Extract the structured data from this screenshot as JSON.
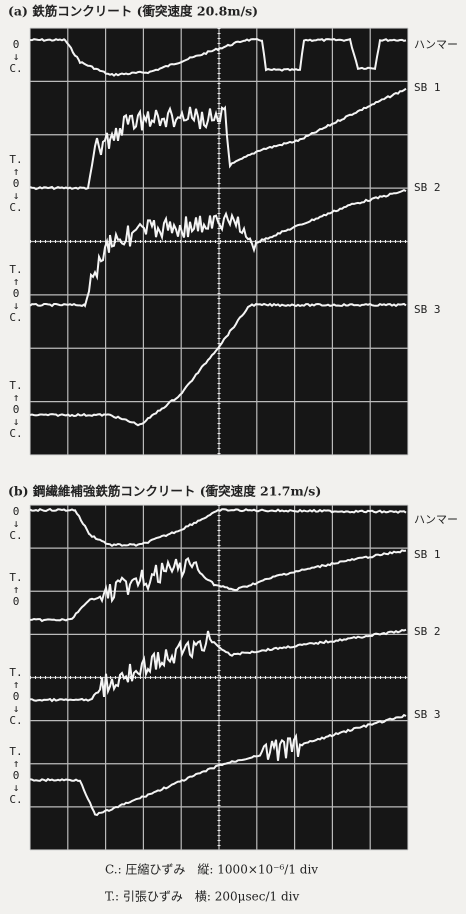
{
  "panels": [
    {
      "title": "(a) 鉄筋コンクリート (衝突速度 20.8m/s)",
      "traces": [
        {
          "name": "ハンマー",
          "axis_labels": [
            "0",
            "↓",
            "C."
          ]
        },
        {
          "name": "SB 1",
          "axis_labels": [
            "T.",
            "↑",
            "0",
            "↓",
            "C."
          ]
        },
        {
          "name": "SB 2",
          "axis_labels": [
            "T.",
            "↑",
            "0",
            "↓",
            "C."
          ]
        },
        {
          "name": "SB 3",
          "axis_labels": [
            "T.",
            "↑",
            "0",
            "↓",
            "C."
          ]
        }
      ]
    },
    {
      "title": "(b) 鋼繊維補強鉄筋コンクリート (衝突速度 21.7m/s)",
      "traces": [
        {
          "name": "ハンマー",
          "axis_labels": [
            "0",
            "↓",
            "C."
          ]
        },
        {
          "name": "SB 1",
          "axis_labels": [
            "T.",
            "↑",
            "0"
          ]
        },
        {
          "name": "SB 2",
          "axis_labels": [
            "T.",
            "↑",
            "0",
            "↓",
            "C."
          ]
        },
        {
          "name": "SB 3",
          "axis_labels": [
            "T.",
            "↑",
            "0",
            "↓",
            "C."
          ]
        }
      ]
    }
  ],
  "legend": [
    "C.: 圧縮ひずみ　縦: 1000×10⁻⁶/1 div",
    "T.: 引張ひずみ　横: 200μsec/1 div"
  ]
}
